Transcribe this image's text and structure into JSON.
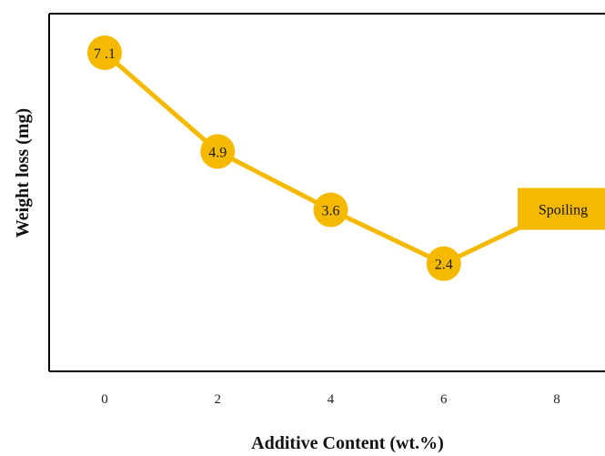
{
  "chart_data": {
    "type": "line",
    "xlabel": "Additive Content (wt.%)",
    "ylabel": "Weight loss (mg)",
    "x": [
      0,
      2,
      4,
      6,
      8
    ],
    "x_ticks": [
      "0",
      "2",
      "4",
      "6",
      "8"
    ],
    "series": [
      {
        "values": [
          7.1,
          4.9,
          3.6,
          2.4,
          3.6
        ]
      }
    ],
    "data_labels": [
      "7 .1",
      "4.9",
      "3.6",
      "2.4",
      ""
    ],
    "ylim": [
      0,
      8.3
    ],
    "grid": false,
    "annotation": {
      "text": "Spoiling",
      "x": 8
    }
  },
  "colors": {
    "series": "#F5BA00",
    "axis": "#000000"
  }
}
